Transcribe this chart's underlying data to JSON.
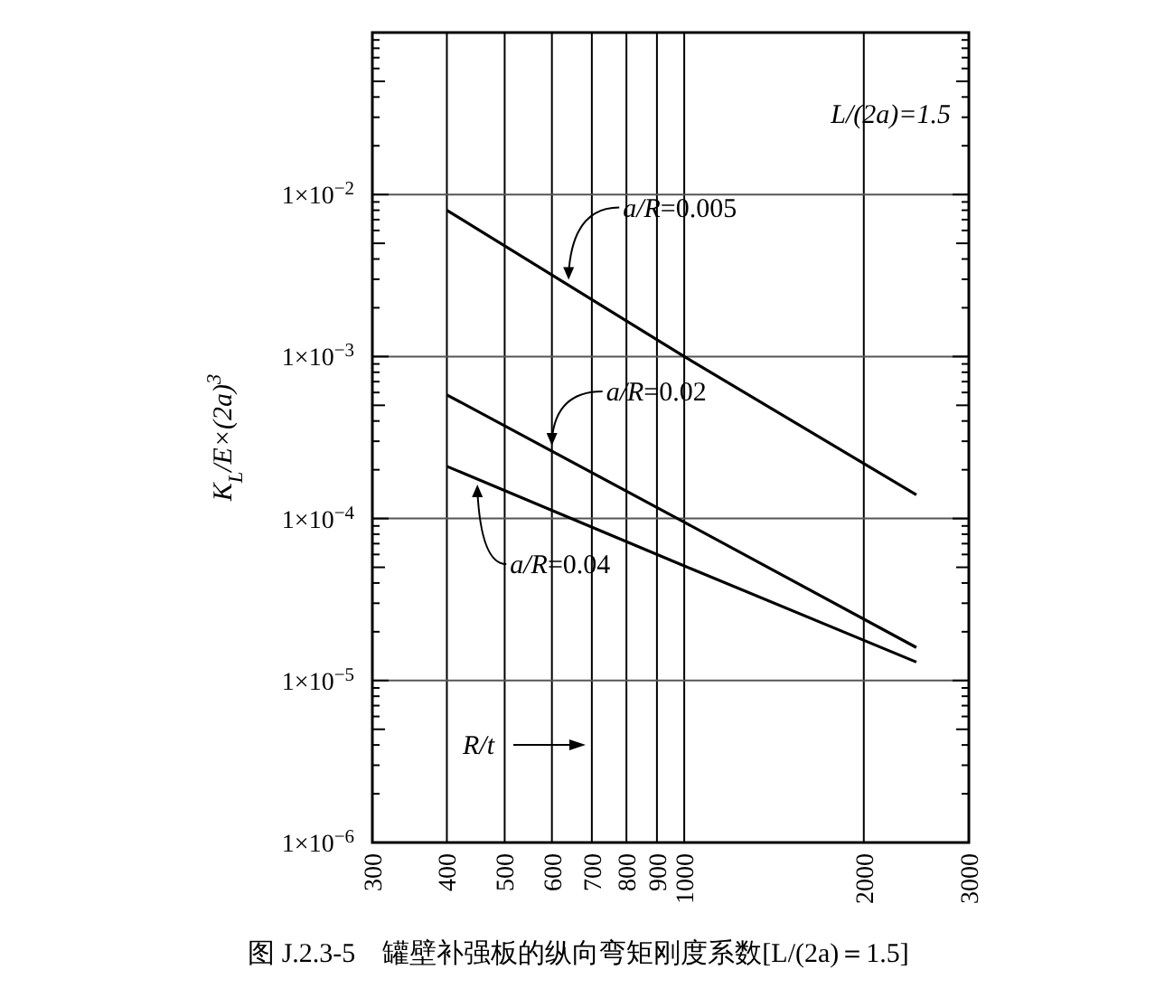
{
  "chart_data": {
    "type": "line",
    "title": "图 J.2.3-5　罐壁补强板的纵向弯矩刚度系数[L/(2a)＝1.5]",
    "xlabel": "R/t",
    "ylabel": "K$_{L}$/E×(2a)$^{3}$",
    "annotations": [
      "L/(2a)=1.5"
    ],
    "log": "xy",
    "grid": true,
    "marker": "none",
    "line_style": "solid",
    "xlim": [
      300,
      3000
    ],
    "xticks": [
      300,
      400,
      500,
      600,
      700,
      800,
      900,
      1000,
      2000,
      3000
    ],
    "ylim": [
      1e-06,
      0.1
    ],
    "yticks": [
      {
        "value": 1e-06,
        "label": "1×10$^{−6}$"
      },
      {
        "value": 1e-05,
        "label": "1×10$^{−5}$"
      },
      {
        "value": 0.0001,
        "label": "1×10$^{−4}$"
      },
      {
        "value": 0.001,
        "label": "1×10$^{−3}$"
      },
      {
        "value": 0.01,
        "label": "1×10$^{−2}$"
      },
      {
        "value": 0.1,
        "label": null
      }
    ],
    "series": [
      {
        "name": "a/R=0.005",
        "color": "#000000",
        "x": [
          400,
          1000,
          2450
        ],
        "values": [
          0.008,
          0.001,
          0.00014
        ]
      },
      {
        "name": "a/R=0.02",
        "color": "#000000",
        "x": [
          400,
          1000,
          2450
        ],
        "values": [
          0.00058,
          9.5e-05,
          1.6e-05
        ]
      },
      {
        "name": "a/R=0.04",
        "color": "#000000",
        "x": [
          400,
          1000,
          2450
        ],
        "values": [
          0.00021,
          5.1e-05,
          1.3e-05
        ]
      }
    ]
  }
}
